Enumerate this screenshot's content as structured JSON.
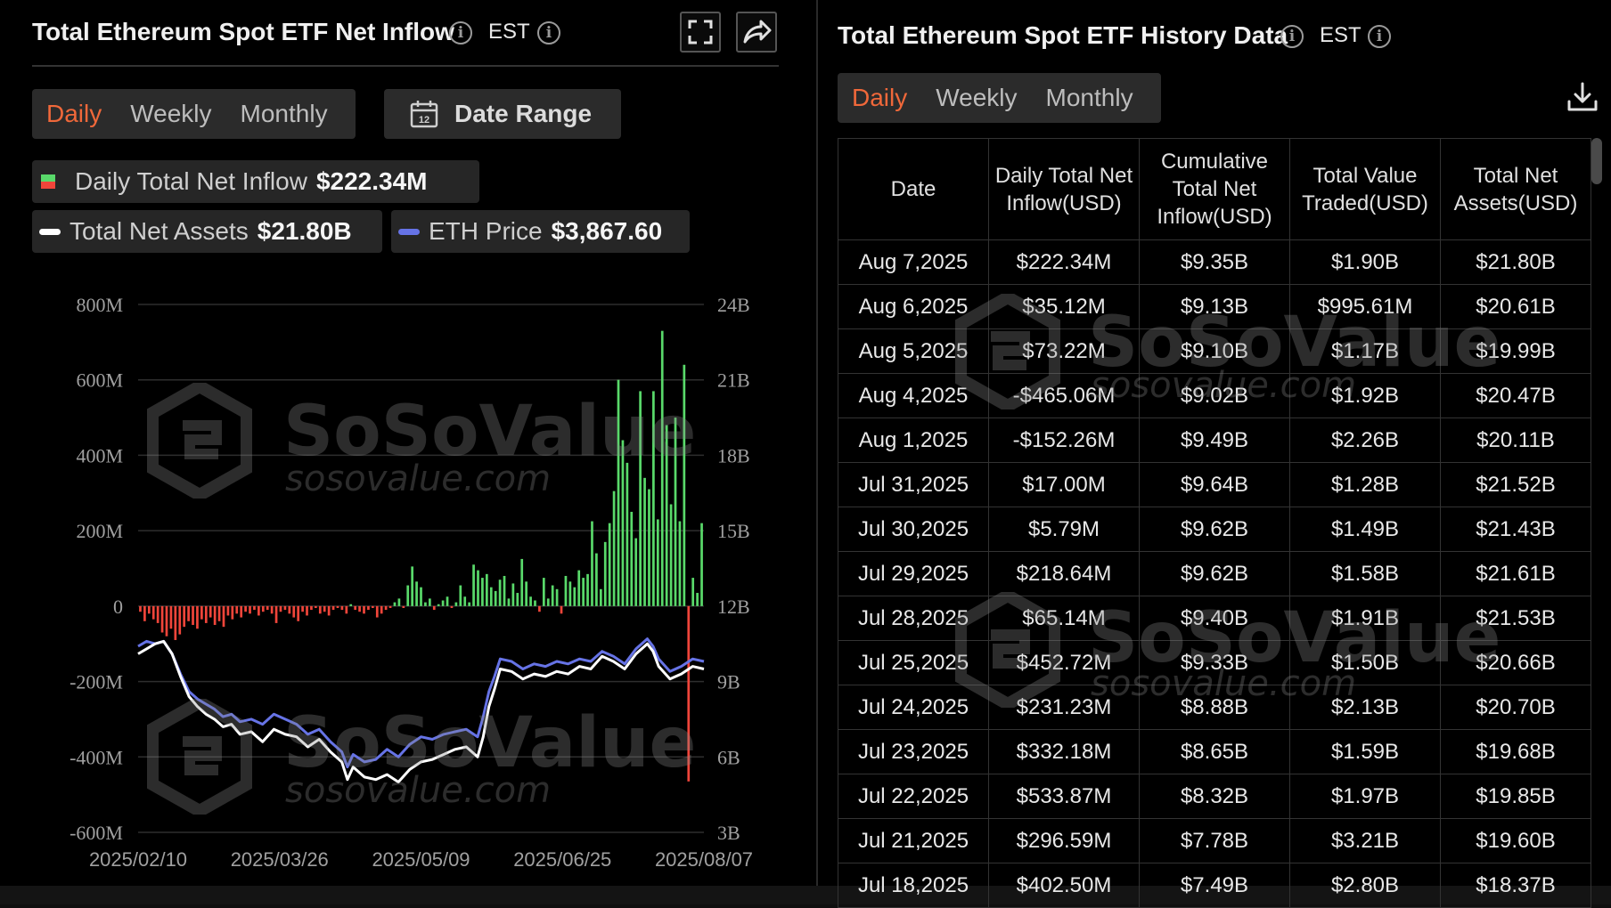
{
  "left": {
    "title": "Total Ethereum Spot ETF Net Inflow",
    "timezone": "EST",
    "tabs": [
      {
        "label": "Daily",
        "active": true
      },
      {
        "label": "Weekly",
        "active": false
      },
      {
        "label": "Monthly",
        "active": false
      }
    ],
    "date_range_label": "Date Range",
    "calendar_day": "12",
    "legend": {
      "inflow_label": "Daily Total Net Inflow",
      "inflow_value": "$222.34M",
      "assets_label": "Total Net Assets",
      "assets_value": "$21.80B",
      "price_label": "ETH Price",
      "price_value": "$3,867.60"
    }
  },
  "right": {
    "title": "Total Ethereum Spot ETF History Data",
    "timezone": "EST",
    "tabs": [
      {
        "label": "Daily",
        "active": true
      },
      {
        "label": "Weekly",
        "active": false
      },
      {
        "label": "Monthly",
        "active": false
      }
    ],
    "columns": [
      "Date",
      "Daily Total Net Inflow(USD)",
      "Cumulative Total Net Inflow(USD)",
      "Total Value Traded(USD)",
      "Total Net Assets(USD)"
    ],
    "rows": [
      {
        "date": "Aug 7,2025",
        "inflow": "$222.34M",
        "sign": "pos",
        "cumulative": "$9.35B",
        "traded": "$1.90B",
        "assets": "$21.80B"
      },
      {
        "date": "Aug 6,2025",
        "inflow": "$35.12M",
        "sign": "pos",
        "cumulative": "$9.13B",
        "traded": "$995.61M",
        "assets": "$20.61B"
      },
      {
        "date": "Aug 5,2025",
        "inflow": "$73.22M",
        "sign": "pos",
        "cumulative": "$9.10B",
        "traded": "$1.17B",
        "assets": "$19.99B"
      },
      {
        "date": "Aug 4,2025",
        "inflow": "-$465.06M",
        "sign": "neg",
        "cumulative": "$9.02B",
        "traded": "$1.92B",
        "assets": "$20.47B"
      },
      {
        "date": "Aug 1,2025",
        "inflow": "-$152.26M",
        "sign": "neg",
        "cumulative": "$9.49B",
        "traded": "$2.26B",
        "assets": "$20.11B"
      },
      {
        "date": "Jul 31,2025",
        "inflow": "$17.00M",
        "sign": "pos",
        "cumulative": "$9.64B",
        "traded": "$1.28B",
        "assets": "$21.52B"
      },
      {
        "date": "Jul 30,2025",
        "inflow": "$5.79M",
        "sign": "pos",
        "cumulative": "$9.62B",
        "traded": "$1.49B",
        "assets": "$21.43B"
      },
      {
        "date": "Jul 29,2025",
        "inflow": "$218.64M",
        "sign": "pos",
        "cumulative": "$9.62B",
        "traded": "$1.58B",
        "assets": "$21.61B"
      },
      {
        "date": "Jul 28,2025",
        "inflow": "$65.14M",
        "sign": "pos",
        "cumulative": "$9.40B",
        "traded": "$1.91B",
        "assets": "$21.53B"
      },
      {
        "date": "Jul 25,2025",
        "inflow": "$452.72M",
        "sign": "pos",
        "cumulative": "$9.33B",
        "traded": "$1.50B",
        "assets": "$20.66B"
      },
      {
        "date": "Jul 24,2025",
        "inflow": "$231.23M",
        "sign": "pos",
        "cumulative": "$8.88B",
        "traded": "$2.13B",
        "assets": "$20.70B"
      },
      {
        "date": "Jul 23,2025",
        "inflow": "$332.18M",
        "sign": "pos",
        "cumulative": "$8.65B",
        "traded": "$1.59B",
        "assets": "$19.68B"
      },
      {
        "date": "Jul 22,2025",
        "inflow": "$533.87M",
        "sign": "pos",
        "cumulative": "$8.32B",
        "traded": "$1.97B",
        "assets": "$19.85B"
      },
      {
        "date": "Jul 21,2025",
        "inflow": "$296.59M",
        "sign": "pos",
        "cumulative": "$7.78B",
        "traded": "$3.21B",
        "assets": "$19.60B"
      },
      {
        "date": "Jul 18,2025",
        "inflow": "$402.50M",
        "sign": "pos",
        "cumulative": "$7.49B",
        "traded": "$2.80B",
        "assets": "$18.37B"
      }
    ]
  },
  "watermark": {
    "brand": "SoSoValue",
    "site": "sosovalue.com"
  },
  "colors": {
    "inflow_positive": "#59d96a",
    "inflow_negative": "#f0453a",
    "active_tab": "#f0683a",
    "assets_line": "#ffffff",
    "price_line": "#6673e6"
  },
  "chart_data": {
    "type": "bar",
    "left_axis": {
      "ticks": [
        "800M",
        "600M",
        "400M",
        "200M",
        "0",
        "-200M",
        "-400M",
        "-600M"
      ],
      "ylim": [
        -600,
        800
      ],
      "unit": "M"
    },
    "right_axis": {
      "ticks": [
        "24B",
        "21B",
        "18B",
        "15B",
        "12B",
        "9B",
        "6B",
        "3B"
      ],
      "ylim": [
        3,
        24
      ],
      "unit": "B"
    },
    "x_ticks": [
      "2025/02/10",
      "2025/03/26",
      "2025/05/09",
      "2025/06/25",
      "2025/08/07"
    ],
    "x_range": [
      "2025-02-10",
      "2025-08-07"
    ],
    "inflow": [
      [
        -15,
        -40,
        -20,
        -35,
        -45,
        -70,
        -80,
        -60,
        -90,
        -75,
        -55,
        -40,
        -50,
        -60,
        -35,
        -45,
        -30,
        -50,
        -40,
        -55,
        -25,
        -35,
        -20,
        -30,
        -15,
        -20,
        -10,
        -25,
        -15,
        -10,
        -20,
        -45,
        -15,
        -10,
        -20,
        -30,
        -40,
        -15,
        -25,
        -10,
        -5,
        -20,
        -15,
        -25,
        -10,
        -5,
        -10,
        -20,
        5,
        -10,
        -15,
        -20,
        -10,
        -5,
        -30,
        -20,
        -10,
        -5
      ],
      [
        10,
        20,
        -5,
        55,
        105,
        65,
        50,
        10,
        20,
        -10,
        5,
        15,
        25,
        -5,
        10,
        55,
        25,
        10,
        110,
        95,
        75,
        85,
        50,
        40,
        70,
        80,
        20,
        60,
        35,
        125,
        65,
        25,
        15,
        -15,
        75,
        20,
        55,
        45,
        -20,
        80,
        65,
        50,
        95,
        75,
        85,
        225,
        140,
        45,
        170,
        220,
        305,
        600,
        440,
        380,
        250,
        180,
        570,
        340,
        310,
        570,
        230,
        730,
        480,
        270,
        500,
        225,
        640,
        -465,
        75,
        35,
        220
      ]
    ],
    "assets": [
      [
        0.0,
        10.1
      ],
      [
        0.015,
        10.3
      ],
      [
        0.03,
        10.5
      ],
      [
        0.045,
        10.6
      ],
      [
        0.06,
        10.1
      ],
      [
        0.075,
        9.2
      ],
      [
        0.09,
        8.4
      ],
      [
        0.105,
        8.0
      ],
      [
        0.12,
        7.7
      ],
      [
        0.135,
        7.5
      ],
      [
        0.15,
        7.2
      ],
      [
        0.165,
        7.3
      ],
      [
        0.18,
        6.9
      ],
      [
        0.2,
        7.0
      ],
      [
        0.22,
        6.6
      ],
      [
        0.24,
        7.1
      ],
      [
        0.26,
        6.9
      ],
      [
        0.28,
        6.8
      ],
      [
        0.3,
        6.4
      ],
      [
        0.32,
        6.7
      ],
      [
        0.34,
        6.2
      ],
      [
        0.36,
        5.8
      ],
      [
        0.37,
        5.1
      ],
      [
        0.38,
        5.6
      ],
      [
        0.4,
        5.2
      ],
      [
        0.42,
        5.1
      ],
      [
        0.44,
        5.3
      ],
      [
        0.46,
        5.0
      ],
      [
        0.48,
        5.5
      ],
      [
        0.5,
        5.8
      ],
      [
        0.52,
        5.9
      ],
      [
        0.54,
        6.1
      ],
      [
        0.56,
        6.3
      ],
      [
        0.58,
        6.4
      ],
      [
        0.6,
        6.0
      ],
      [
        0.61,
        6.8
      ],
      [
        0.62,
        8.0
      ],
      [
        0.63,
        8.7
      ],
      [
        0.64,
        9.5
      ],
      [
        0.66,
        9.4
      ],
      [
        0.68,
        9.1
      ],
      [
        0.7,
        9.3
      ],
      [
        0.72,
        9.2
      ],
      [
        0.74,
        9.4
      ],
      [
        0.76,
        9.3
      ],
      [
        0.78,
        9.6
      ],
      [
        0.8,
        9.5
      ],
      [
        0.82,
        10.0
      ],
      [
        0.84,
        9.8
      ],
      [
        0.86,
        9.5
      ],
      [
        0.88,
        10.1
      ],
      [
        0.9,
        10.5
      ],
      [
        0.91,
        10.2
      ],
      [
        0.92,
        9.6
      ],
      [
        0.94,
        9.1
      ],
      [
        0.96,
        9.3
      ],
      [
        0.98,
        9.6
      ],
      [
        1.0,
        9.5
      ]
    ],
    "price": [
      [
        0.0,
        10.4
      ],
      [
        0.015,
        10.6
      ],
      [
        0.03,
        10.5
      ],
      [
        0.045,
        10.6
      ],
      [
        0.06,
        10.1
      ],
      [
        0.075,
        9.3
      ],
      [
        0.09,
        8.6
      ],
      [
        0.105,
        8.3
      ],
      [
        0.12,
        8.1
      ],
      [
        0.135,
        7.9
      ],
      [
        0.15,
        7.6
      ],
      [
        0.165,
        7.7
      ],
      [
        0.18,
        7.4
      ],
      [
        0.2,
        7.5
      ],
      [
        0.22,
        7.3
      ],
      [
        0.24,
        7.7
      ],
      [
        0.26,
        7.5
      ],
      [
        0.28,
        7.3
      ],
      [
        0.3,
        6.9
      ],
      [
        0.32,
        7.1
      ],
      [
        0.34,
        6.6
      ],
      [
        0.36,
        6.2
      ],
      [
        0.37,
        5.6
      ],
      [
        0.38,
        6.1
      ],
      [
        0.4,
        5.8
      ],
      [
        0.42,
        5.9
      ],
      [
        0.44,
        6.3
      ],
      [
        0.46,
        6.0
      ],
      [
        0.48,
        6.5
      ],
      [
        0.5,
        6.8
      ],
      [
        0.52,
        6.7
      ],
      [
        0.54,
        6.9
      ],
      [
        0.56,
        7.0
      ],
      [
        0.58,
        7.1
      ],
      [
        0.6,
        6.8
      ],
      [
        0.61,
        7.6
      ],
      [
        0.62,
        8.6
      ],
      [
        0.63,
        9.2
      ],
      [
        0.64,
        9.9
      ],
      [
        0.66,
        9.8
      ],
      [
        0.68,
        9.5
      ],
      [
        0.7,
        9.7
      ],
      [
        0.72,
        9.6
      ],
      [
        0.74,
        9.8
      ],
      [
        0.76,
        9.7
      ],
      [
        0.78,
        9.9
      ],
      [
        0.8,
        9.8
      ],
      [
        0.82,
        10.2
      ],
      [
        0.84,
        10.0
      ],
      [
        0.86,
        9.7
      ],
      [
        0.88,
        10.3
      ],
      [
        0.9,
        10.7
      ],
      [
        0.91,
        10.4
      ],
      [
        0.92,
        9.9
      ],
      [
        0.94,
        9.4
      ],
      [
        0.96,
        9.6
      ],
      [
        0.98,
        9.9
      ],
      [
        1.0,
        9.8
      ]
    ]
  }
}
